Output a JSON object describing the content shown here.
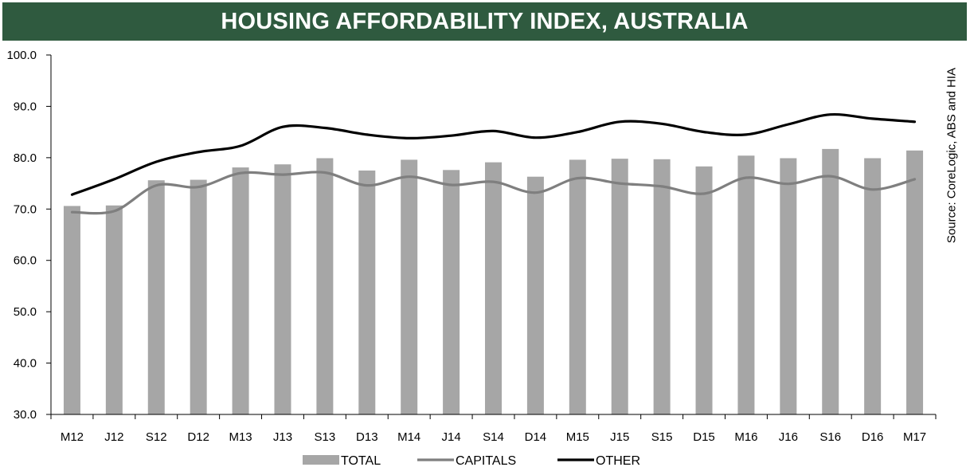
{
  "chart_data": {
    "type": "bar",
    "title": "HOUSING AFFORDABILITY INDEX, AUSTRALIA",
    "source": "Source: CoreLogic, ABS and HIA",
    "categories": [
      "M12",
      "J12",
      "S12",
      "D12",
      "M13",
      "J13",
      "S13",
      "D13",
      "M14",
      "J14",
      "S14",
      "D14",
      "M15",
      "J15",
      "S15",
      "D15",
      "M16",
      "J16",
      "S16",
      "D16",
      "M17"
    ],
    "ylim": [
      30,
      100
    ],
    "yticks": [
      "30.0",
      "40.0",
      "50.0",
      "60.0",
      "70.0",
      "80.0",
      "90.0",
      "100.0"
    ],
    "series": [
      {
        "name": "TOTAL",
        "type": "bar",
        "color": "#a6a6a6",
        "values": [
          70.6,
          70.7,
          75.6,
          75.7,
          78.1,
          78.7,
          79.9,
          77.5,
          79.6,
          77.6,
          79.1,
          76.3,
          79.6,
          79.8,
          79.7,
          78.3,
          80.4,
          79.9,
          81.7,
          79.9,
          81.4
        ]
      },
      {
        "name": "CAPITALS",
        "type": "line",
        "color": "#7f7f7f",
        "values": [
          69.4,
          69.6,
          74.6,
          74.3,
          77.0,
          76.7,
          77.1,
          74.6,
          76.3,
          74.7,
          75.3,
          73.2,
          76.0,
          75.0,
          74.4,
          73.0,
          76.1,
          74.9,
          76.4,
          73.8,
          75.8
        ]
      },
      {
        "name": "OTHER",
        "type": "line",
        "color": "#000000",
        "values": [
          72.8,
          75.8,
          79.2,
          81.1,
          82.3,
          86.0,
          85.8,
          84.5,
          83.8,
          84.3,
          85.2,
          83.9,
          85.0,
          87.0,
          86.6,
          85.0,
          84.5,
          86.5,
          88.4,
          87.6,
          87.0
        ]
      }
    ]
  }
}
